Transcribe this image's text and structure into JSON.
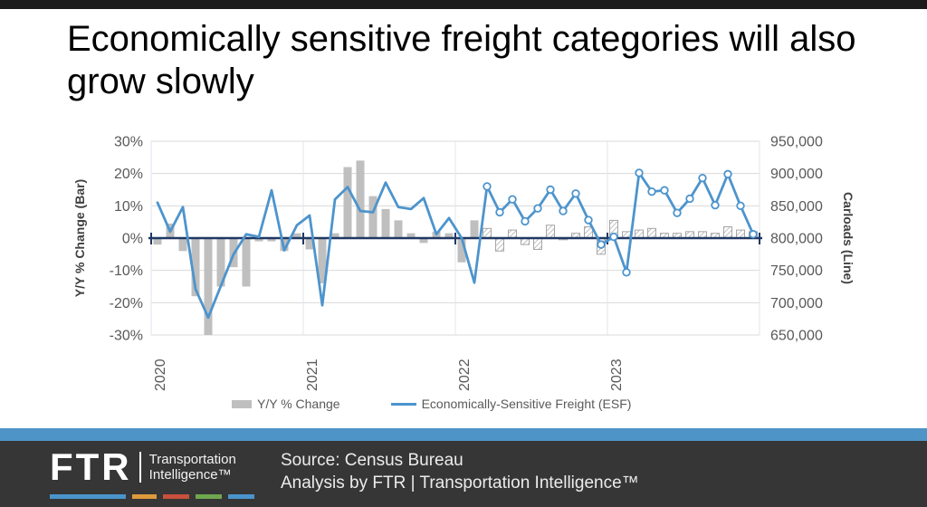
{
  "slide": {
    "title": "Economically sensitive freight categories will also grow slowly"
  },
  "chart": {
    "left_axis_title": "Y/Y % Change (Bar)",
    "right_axis_title": "Carloads (Line)",
    "colors": {
      "bar": "#BFBFBF",
      "line": "#4D94CD",
      "zero_axis": "#1F3864",
      "gridline": "#D9D9D9",
      "vertical_gridline": "#E2E4EE",
      "tick_label": "#595959",
      "hatch_line": "#9c9c9c",
      "hatch_border": "#A6A6A6"
    }
  },
  "chart_data": {
    "type": "bar+line",
    "title": "",
    "x": [
      "2020-01",
      "2020-02",
      "2020-03",
      "2020-04",
      "2020-05",
      "2020-06",
      "2020-07",
      "2020-08",
      "2020-09",
      "2020-10",
      "2020-11",
      "2020-12",
      "2021-01",
      "2021-02",
      "2021-03",
      "2021-04",
      "2021-05",
      "2021-06",
      "2021-07",
      "2021-08",
      "2021-09",
      "2021-10",
      "2021-11",
      "2021-12",
      "2022-01",
      "2022-02",
      "2022-03",
      "2022-04",
      "2022-05",
      "2022-06",
      "2022-07",
      "2022-08",
      "2022-09",
      "2022-10",
      "2022-11",
      "2022-12",
      "2023-01",
      "2023-02",
      "2023-03",
      "2023-04",
      "2023-05",
      "2023-06",
      "2023-07",
      "2023-08",
      "2023-09",
      "2023-10",
      "2023-11",
      "2023-12"
    ],
    "series": [
      {
        "name": "Y/Y % Change",
        "type": "bar",
        "axis": "left",
        "unit": "%",
        "values": [
          -2,
          4.5,
          -4,
          -18,
          -30,
          -15,
          -9,
          -15,
          -1,
          -1,
          -4,
          1.5,
          -3.5,
          -14,
          1.5,
          22,
          24,
          13,
          9,
          5.5,
          1.5,
          -1.5,
          2,
          1.5,
          -7.5,
          5.5,
          3,
          -4,
          2.5,
          -2,
          -3.5,
          4,
          -0.5,
          1.5,
          3.5,
          -5,
          5.5,
          2,
          2.5,
          3,
          1.5,
          1.5,
          2,
          2,
          1.5,
          3.5,
          2.5,
          2
        ]
      },
      {
        "name": "Economically-Sensitive Freight (ESF)",
        "type": "line",
        "axis": "right",
        "unit": "carloads",
        "values": [
          855000,
          810000,
          848000,
          721000,
          677000,
          726000,
          775000,
          806000,
          802000,
          874000,
          781000,
          820000,
          835000,
          696000,
          860000,
          879000,
          842000,
          840000,
          886000,
          848000,
          845000,
          862000,
          806000,
          831000,
          800000,
          731000,
          880000,
          840000,
          860000,
          826000,
          846000,
          875000,
          842000,
          869000,
          828000,
          790000,
          802000,
          747000,
          901000,
          872000,
          874000,
          839000,
          861000,
          893000,
          851000,
          899000,
          850000,
          806000
        ]
      }
    ],
    "forecast_start_index": 26,
    "left_ylim": [
      -30,
      30
    ],
    "right_ylim": [
      650000,
      950000
    ],
    "left_ticks": [
      "30%",
      "20%",
      "10%",
      "0%",
      "-10%",
      "-20%",
      "-30%"
    ],
    "right_ticks": [
      "950,000",
      "900,000",
      "850,000",
      "800,000",
      "750,000",
      "700,000",
      "650,000"
    ],
    "year_labels": [
      "2020",
      "2021",
      "2022",
      "2023"
    ],
    "year_starts": [
      0,
      12,
      24,
      36
    ],
    "grid": true,
    "legend_position": "bottom"
  },
  "footer": {
    "source_line1": "Source: Census Bureau",
    "source_line2": "Analysis by FTR | Transportation Intelligence™",
    "logo": {
      "brand": "FTR",
      "tagline_line1": "Transportation",
      "tagline_line2": "Intelligence™",
      "dash_colors": [
        "#4A94CC",
        "#DE9A3C",
        "#C8503C",
        "#6FA74F",
        "#4A94CC"
      ]
    }
  }
}
